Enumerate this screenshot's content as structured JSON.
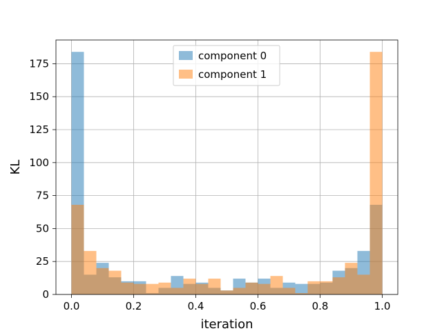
{
  "chart_data": {
    "type": "bar",
    "subtype": "histogram-overlay",
    "title": "",
    "xlabel": "iteration",
    "ylabel": "KL",
    "xlim": [
      -0.05,
      1.05
    ],
    "ylim": [
      0,
      193
    ],
    "xticks": [
      0.0,
      0.2,
      0.4,
      0.6,
      0.8,
      1.0
    ],
    "xtick_labels": [
      "0.0",
      "0.2",
      "0.4",
      "0.6",
      "0.8",
      "1.0"
    ],
    "yticks": [
      0,
      25,
      50,
      75,
      100,
      125,
      150,
      175
    ],
    "ytick_labels": [
      "0",
      "25",
      "50",
      "75",
      "100",
      "125",
      "150",
      "175"
    ],
    "grid": true,
    "legend_position": "top-center",
    "bin_edges": [
      0.0,
      0.04,
      0.08,
      0.12,
      0.16,
      0.2,
      0.24,
      0.28,
      0.32,
      0.36,
      0.4,
      0.44,
      0.48,
      0.52,
      0.56,
      0.6,
      0.64,
      0.68,
      0.72,
      0.76,
      0.8,
      0.84,
      0.88,
      0.92,
      0.96,
      1.0
    ],
    "series": [
      {
        "name": "component 0",
        "color": "#1f77b4",
        "alpha": 0.5,
        "values": [
          184,
          15,
          24,
          13,
          10,
          10,
          1,
          5,
          14,
          8,
          9,
          5,
          3,
          12,
          9,
          12,
          5,
          9,
          8,
          8,
          9,
          18,
          20,
          33,
          68
        ]
      },
      {
        "name": "component 1",
        "color": "#ff7f0e",
        "alpha": 0.5,
        "values": [
          68,
          33,
          20,
          18,
          9,
          8,
          8,
          9,
          5,
          12,
          8,
          12,
          3,
          5,
          9,
          8,
          14,
          5,
          1,
          10,
          10,
          13,
          24,
          15,
          184
        ]
      }
    ]
  }
}
